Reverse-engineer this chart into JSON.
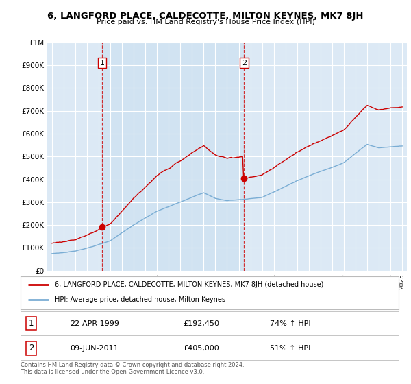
{
  "title": "6, LANGFORD PLACE, CALDECOTTE, MILTON KEYNES, MK7 8JH",
  "subtitle": "Price paid vs. HM Land Registry's House Price Index (HPI)",
  "background_color": "#ffffff",
  "plot_bg_color": "#dce9f5",
  "grid_color": "#ffffff",
  "hpi_line_color": "#7aadd4",
  "price_line_color": "#cc0000",
  "highlight_color": "#d0e4f7",
  "sale1_x": 1999.3,
  "sale2_x": 2011.45,
  "sale1_price": 192450,
  "sale2_price": 405000,
  "yticks": [
    0,
    100000,
    200000,
    300000,
    400000,
    500000,
    600000,
    700000,
    800000,
    900000,
    1000000
  ],
  "ytick_labels": [
    "£0",
    "£100K",
    "£200K",
    "£300K",
    "£400K",
    "£500K",
    "£600K",
    "£700K",
    "£800K",
    "£900K",
    "£1M"
  ],
  "legend_line1": "6, LANGFORD PLACE, CALDECOTTE, MILTON KEYNES, MK7 8JH (detached house)",
  "legend_line2": "HPI: Average price, detached house, Milton Keynes",
  "footer1": "Contains HM Land Registry data © Crown copyright and database right 2024.",
  "footer2": "This data is licensed under the Open Government Licence v3.0.",
  "table_row1": [
    "1",
    "22-APR-1999",
    "£192,450",
    "74% ↑ HPI"
  ],
  "table_row2": [
    "2",
    "09-JUN-2011",
    "£405,000",
    "51% ↑ HPI"
  ]
}
